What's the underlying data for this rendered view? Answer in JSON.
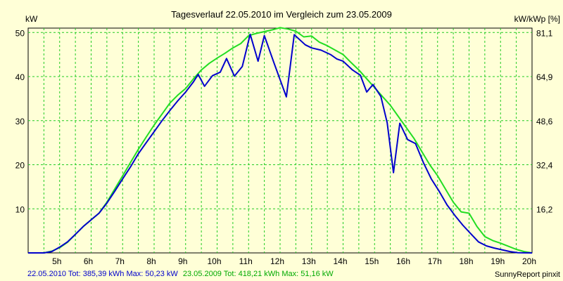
{
  "chart_data": {
    "type": "line",
    "title": "Tagesverlauf 22.05.2010 im Vergleich zum 23.05.2009",
    "ylabel": "kW",
    "ylabel_right": "kW/kWp [%]",
    "xlim": [
      4.0,
      20.0
    ],
    "ylim": [
      0,
      51
    ],
    "grid": true,
    "x_ticks": [
      {
        "value": 5,
        "label": "5h"
      },
      {
        "value": 6,
        "label": "6h"
      },
      {
        "value": 7,
        "label": "7h"
      },
      {
        "value": 8,
        "label": "8h"
      },
      {
        "value": 9,
        "label": "9h"
      },
      {
        "value": 10,
        "label": "10h"
      },
      {
        "value": 11,
        "label": "11h"
      },
      {
        "value": 12,
        "label": "12h"
      },
      {
        "value": 13,
        "label": "13h"
      },
      {
        "value": 14,
        "label": "14h"
      },
      {
        "value": 15,
        "label": "15h"
      },
      {
        "value": 16,
        "label": "16h"
      },
      {
        "value": 17,
        "label": "17h"
      },
      {
        "value": 18,
        "label": "18h"
      },
      {
        "value": 19,
        "label": "19h"
      },
      {
        "value": 20,
        "label": "20h"
      }
    ],
    "y_ticks": [
      {
        "value": 10,
        "label": "10"
      },
      {
        "value": 20,
        "label": "20"
      },
      {
        "value": 30,
        "label": "30"
      },
      {
        "value": 40,
        "label": "40"
      },
      {
        "value": 50,
        "label": "50"
      }
    ],
    "y_ticks_right": [
      {
        "value": 10,
        "label": "16,2"
      },
      {
        "value": 20,
        "label": "32,4"
      },
      {
        "value": 30,
        "label": "48,6"
      },
      {
        "value": 40,
        "label": "64,9"
      },
      {
        "value": 50,
        "label": "81,1"
      }
    ],
    "series": [
      {
        "name": "22.05.2010",
        "color": "#0000cc",
        "points": [
          [
            4.0,
            0
          ],
          [
            4.5,
            0
          ],
          [
            4.75,
            0.3
          ],
          [
            5.0,
            1.3
          ],
          [
            5.25,
            2.5
          ],
          [
            5.5,
            4.2
          ],
          [
            5.75,
            6
          ],
          [
            6.0,
            7.5
          ],
          [
            6.25,
            9
          ],
          [
            6.5,
            11.3
          ],
          [
            6.75,
            14
          ],
          [
            7.0,
            16.8
          ],
          [
            7.25,
            19.5
          ],
          [
            7.5,
            22.5
          ],
          [
            7.75,
            25
          ],
          [
            8.0,
            27.5
          ],
          [
            8.25,
            30
          ],
          [
            8.5,
            32.3
          ],
          [
            8.75,
            34.5
          ],
          [
            9.0,
            36.5
          ],
          [
            9.25,
            38.8
          ],
          [
            9.4,
            40.5
          ],
          [
            9.6,
            37.8
          ],
          [
            9.85,
            40.2
          ],
          [
            10.1,
            41
          ],
          [
            10.3,
            44.1
          ],
          [
            10.55,
            40.1
          ],
          [
            10.8,
            42.3
          ],
          [
            11.05,
            49.6
          ],
          [
            11.3,
            43.5
          ],
          [
            11.5,
            49.3
          ],
          [
            11.8,
            43.2
          ],
          [
            12.2,
            35.4
          ],
          [
            12.45,
            49.5
          ],
          [
            12.8,
            47.2
          ],
          [
            13.0,
            46.5
          ],
          [
            13.3,
            46
          ],
          [
            13.6,
            45
          ],
          [
            13.8,
            44
          ],
          [
            14.0,
            43.5
          ],
          [
            14.3,
            41.5
          ],
          [
            14.55,
            40.3
          ],
          [
            14.75,
            36.5
          ],
          [
            14.95,
            38.2
          ],
          [
            15.2,
            35.5
          ],
          [
            15.4,
            29.5
          ],
          [
            15.6,
            18.2
          ],
          [
            15.8,
            29.4
          ],
          [
            16.05,
            25.7
          ],
          [
            16.3,
            24.8
          ],
          [
            16.55,
            20.5
          ],
          [
            16.8,
            16.8
          ],
          [
            17.05,
            14
          ],
          [
            17.3,
            10.9
          ],
          [
            17.55,
            8.5
          ],
          [
            17.8,
            6.3
          ],
          [
            18.05,
            4.4
          ],
          [
            18.3,
            2.5
          ],
          [
            18.55,
            1.6
          ],
          [
            18.8,
            1.1
          ],
          [
            19.05,
            0.7
          ],
          [
            19.3,
            0.3
          ],
          [
            19.55,
            0.05
          ],
          [
            20.0,
            0
          ]
        ]
      },
      {
        "name": "23.05.2009",
        "color": "#22dd22",
        "points": [
          [
            4.0,
            0
          ],
          [
            4.5,
            0
          ],
          [
            4.75,
            0.4
          ],
          [
            5.0,
            1.2
          ],
          [
            5.25,
            2.4
          ],
          [
            5.5,
            4.2
          ],
          [
            5.75,
            6
          ],
          [
            6.0,
            7.5
          ],
          [
            6.25,
            9
          ],
          [
            6.5,
            11.5
          ],
          [
            6.75,
            14.5
          ],
          [
            7.0,
            17.5
          ],
          [
            7.25,
            20.5
          ],
          [
            7.5,
            23.5
          ],
          [
            7.75,
            26.3
          ],
          [
            8.0,
            29
          ],
          [
            8.25,
            31.5
          ],
          [
            8.5,
            34
          ],
          [
            8.75,
            35.8
          ],
          [
            9.0,
            37.3
          ],
          [
            9.25,
            39.5
          ],
          [
            9.5,
            41.5
          ],
          [
            9.75,
            43
          ],
          [
            10.0,
            44.2
          ],
          [
            10.25,
            45.3
          ],
          [
            10.5,
            46.5
          ],
          [
            10.75,
            47.5
          ],
          [
            11.0,
            49.3
          ],
          [
            11.25,
            49.8
          ],
          [
            11.5,
            50.2
          ],
          [
            11.75,
            50.6
          ],
          [
            12.0,
            51.1
          ],
          [
            12.25,
            50.8
          ],
          [
            12.5,
            50.3
          ],
          [
            12.75,
            49
          ],
          [
            13.0,
            49.2
          ],
          [
            13.25,
            47.8
          ],
          [
            13.5,
            47
          ],
          [
            13.75,
            46
          ],
          [
            14.0,
            45
          ],
          [
            14.25,
            43.2
          ],
          [
            14.5,
            41.5
          ],
          [
            14.75,
            39.5
          ],
          [
            15.0,
            37.5
          ],
          [
            15.25,
            35.5
          ],
          [
            15.5,
            33.5
          ],
          [
            15.75,
            31
          ],
          [
            16.0,
            28.5
          ],
          [
            16.25,
            26
          ],
          [
            16.5,
            23
          ],
          [
            16.75,
            20
          ],
          [
            17.0,
            17.5
          ],
          [
            17.25,
            14.5
          ],
          [
            17.5,
            11.5
          ],
          [
            17.75,
            9.3
          ],
          [
            18.0,
            9
          ],
          [
            18.25,
            6
          ],
          [
            18.5,
            3.7
          ],
          [
            18.75,
            2.8
          ],
          [
            19.0,
            2.2
          ],
          [
            19.25,
            1.5
          ],
          [
            19.5,
            0.8
          ],
          [
            19.75,
            0.3
          ],
          [
            20.0,
            0
          ]
        ]
      }
    ],
    "footer_stats": [
      {
        "date": "22.05.2010",
        "text": "22.05.2010 Tot: 385,39 kWh Max: 50,23 kW",
        "color": "#0000cc"
      },
      {
        "date": "23.05.2009",
        "text": "23.05.2009 Tot: 418,21 kWh Max: 51,16 kW",
        "color": "#00aa00"
      }
    ],
    "credit": "SunnyReport pinxit"
  }
}
